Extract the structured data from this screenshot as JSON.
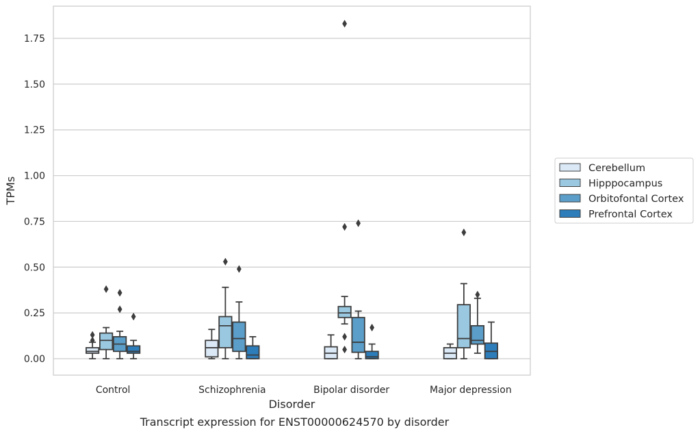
{
  "chart_data": {
    "type": "box",
    "caption": "Transcript expression for ENST00000624570 by disorder",
    "xlabel": "Disorder",
    "ylabel": "TPMs",
    "ylim": [
      -0.09,
      1.92
    ],
    "yticks": [
      0.0,
      0.25,
      0.5,
      0.75,
      1.0,
      1.25,
      1.5,
      1.75
    ],
    "ytick_labels": [
      "0.00",
      "0.25",
      "0.50",
      "0.75",
      "1.00",
      "1.25",
      "1.50",
      "1.75"
    ],
    "grid": "horizontal",
    "legend_position": "right, outside plot",
    "categories": [
      "Control",
      "Schizophrenia",
      "Bipolar disorder",
      "Major depression"
    ],
    "series": [
      {
        "name": "Cerebellum",
        "color": "#dbe9f6",
        "boxes": [
          {
            "whislo": 0.0,
            "q1": 0.03,
            "med": 0.04,
            "q3": 0.06,
            "whishi": 0.09,
            "fliers": [
              0.1,
              0.13
            ]
          },
          {
            "whislo": 0.0,
            "q1": 0.01,
            "med": 0.06,
            "q3": 0.1,
            "whishi": 0.16,
            "fliers": []
          },
          {
            "whislo": 0.0,
            "q1": 0.0,
            "med": 0.03,
            "q3": 0.065,
            "whishi": 0.13,
            "fliers": []
          },
          {
            "whislo": 0.0,
            "q1": 0.0,
            "med": 0.03,
            "q3": 0.06,
            "whishi": 0.08,
            "fliers": []
          }
        ]
      },
      {
        "name": "Hipppocampus",
        "color": "#9ac8e0",
        "boxes": [
          {
            "whislo": 0.0,
            "q1": 0.05,
            "med": 0.1,
            "q3": 0.14,
            "whishi": 0.17,
            "fliers": [
              0.38
            ]
          },
          {
            "whislo": 0.0,
            "q1": 0.06,
            "med": 0.18,
            "q3": 0.23,
            "whishi": 0.39,
            "fliers": [
              0.53
            ]
          },
          {
            "whislo": 0.19,
            "q1": 0.225,
            "med": 0.25,
            "q3": 0.285,
            "whishi": 0.34,
            "fliers": [
              0.12,
              0.05,
              0.72,
              1.83
            ]
          },
          {
            "whislo": 0.0,
            "q1": 0.06,
            "med": 0.11,
            "q3": 0.295,
            "whishi": 0.41,
            "fliers": [
              0.69
            ]
          }
        ]
      },
      {
        "name": "Orbitofontal Cortex",
        "color": "#5b9ec9",
        "boxes": [
          {
            "whislo": 0.0,
            "q1": 0.04,
            "med": 0.08,
            "q3": 0.12,
            "whishi": 0.15,
            "fliers": [
              0.27,
              0.36
            ]
          },
          {
            "whislo": 0.0,
            "q1": 0.04,
            "med": 0.11,
            "q3": 0.2,
            "whishi": 0.31,
            "fliers": [
              0.49
            ]
          },
          {
            "whislo": 0.0,
            "q1": 0.035,
            "med": 0.09,
            "q3": 0.225,
            "whishi": 0.26,
            "fliers": [
              0.74
            ]
          },
          {
            "whislo": 0.03,
            "q1": 0.08,
            "med": 0.1,
            "q3": 0.18,
            "whishi": 0.33,
            "fliers": [
              0.35
            ]
          }
        ]
      },
      {
        "name": "Prefrontal Cortex",
        "color": "#2d7dbb",
        "boxes": [
          {
            "whislo": 0.0,
            "q1": 0.03,
            "med": 0.04,
            "q3": 0.07,
            "whishi": 0.1,
            "fliers": [
              0.23
            ]
          },
          {
            "whislo": 0.0,
            "q1": 0.0,
            "med": 0.02,
            "q3": 0.07,
            "whishi": 0.12,
            "fliers": []
          },
          {
            "whislo": 0.0,
            "q1": 0.0,
            "med": 0.01,
            "q3": 0.04,
            "whishi": 0.08,
            "fliers": [
              0.17
            ]
          },
          {
            "whislo": 0.0,
            "q1": 0.0,
            "med": 0.04,
            "q3": 0.085,
            "whishi": 0.2,
            "fliers": []
          }
        ]
      }
    ]
  }
}
